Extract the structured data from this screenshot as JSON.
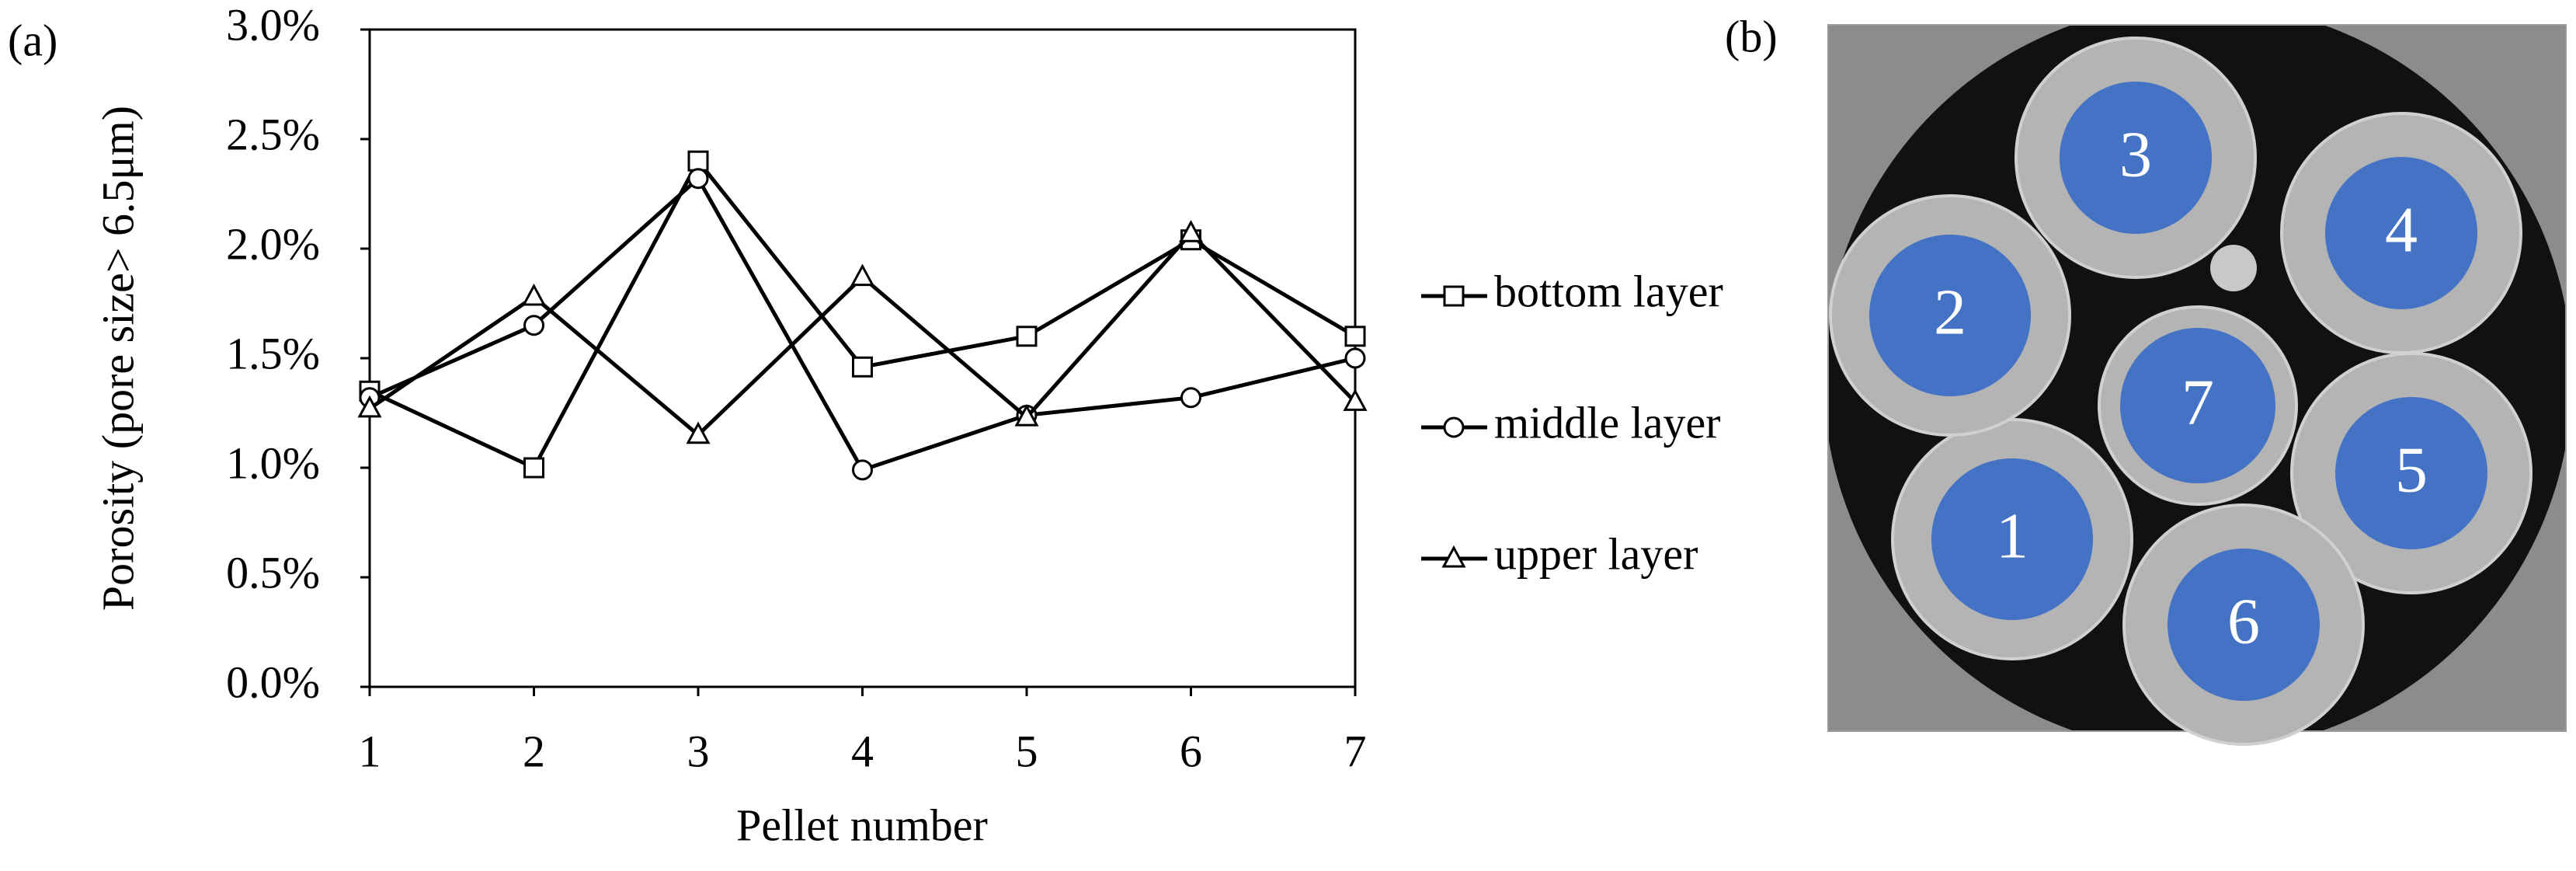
{
  "chart_data": {
    "type": "line",
    "panel_label": "(a)",
    "x_label": "Pellet number",
    "y_label": "Porosity (pore size> 6.5μm)",
    "x": [
      1,
      2,
      3,
      4,
      5,
      6,
      7
    ],
    "xlim": [
      1,
      7
    ],
    "xticks": [
      1,
      2,
      3,
      4,
      5,
      6,
      7
    ],
    "ylim": [
      0,
      3
    ],
    "yticks": [
      {
        "value": 0,
        "label": "0.0%"
      },
      {
        "value": 0.5,
        "label": "0.5%"
      },
      {
        "value": 1,
        "label": "1.0%"
      },
      {
        "value": 1.5,
        "label": "1.5%"
      },
      {
        "value": 2,
        "label": "2.0%"
      },
      {
        "value": 2.5,
        "label": "2.5%"
      },
      {
        "value": 3,
        "label": "3.0%"
      }
    ],
    "grid": false,
    "legend": "right",
    "series": [
      {
        "name": "bottom layer",
        "color": "#000000",
        "marker": "square",
        "values": [
          1.35,
          1.0,
          2.4,
          1.46,
          1.6,
          2.04,
          1.6
        ]
      },
      {
        "name": "middle layer",
        "color": "#000000",
        "marker": "circle",
        "values": [
          1.32,
          1.65,
          2.32,
          0.99,
          1.24,
          1.32,
          1.5
        ]
      },
      {
        "name": "upper layer",
        "color": "#000000",
        "marker": "triangle",
        "values": [
          1.27,
          1.78,
          1.15,
          1.87,
          1.23,
          2.07,
          1.3
        ]
      }
    ]
  },
  "image": {
    "panel_label": "(b)",
    "pellets": [
      "1",
      "2",
      "3",
      "4",
      "5",
      "6",
      "7"
    ]
  }
}
